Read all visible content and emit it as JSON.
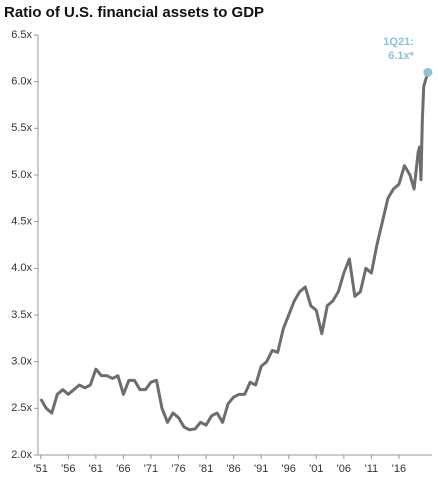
{
  "chart_data": {
    "type": "line",
    "title": "Ratio of U.S. financial assets to GDP",
    "annotation": [
      "1Q21:",
      "6.1x*"
    ],
    "x": [
      1951,
      1952,
      1953,
      1954,
      1955,
      1956,
      1957,
      1958,
      1959,
      1960,
      1961,
      1962,
      1963,
      1964,
      1965,
      1966,
      1967,
      1968,
      1969,
      1970,
      1971,
      1972,
      1973,
      1974,
      1975,
      1976,
      1977,
      1978,
      1979,
      1980,
      1981,
      1982,
      1983,
      1984,
      1985,
      1986,
      1987,
      1988,
      1989,
      1990,
      1991,
      1992,
      1993,
      1994,
      1995,
      1996,
      1997,
      1998,
      1999,
      2000,
      2001,
      2002,
      2003,
      2004,
      2005,
      2006,
      2007,
      2008,
      2009,
      2010,
      2011,
      2012,
      2013,
      2014,
      2015,
      2016,
      2017,
      2018,
      2018.75,
      2019.5,
      2019.75,
      2020,
      2020.25,
      2020.5,
      2020.75,
      2021,
      2021.25
    ],
    "series": [
      {
        "name": "Ratio of U.S. financial assets to GDP",
        "color": "#6d6d6d",
        "values": [
          2.6,
          2.5,
          2.45,
          2.65,
          2.7,
          2.65,
          2.7,
          2.75,
          2.72,
          2.75,
          2.92,
          2.85,
          2.85,
          2.82,
          2.85,
          2.65,
          2.8,
          2.8,
          2.7,
          2.7,
          2.78,
          2.8,
          2.5,
          2.35,
          2.45,
          2.4,
          2.3,
          2.27,
          2.28,
          2.35,
          2.32,
          2.42,
          2.45,
          2.35,
          2.55,
          2.62,
          2.65,
          2.65,
          2.78,
          2.75,
          2.95,
          3.0,
          3.12,
          3.1,
          3.35,
          3.5,
          3.65,
          3.75,
          3.8,
          3.6,
          3.55,
          3.3,
          3.6,
          3.65,
          3.75,
          3.95,
          4.1,
          3.7,
          3.75,
          4.0,
          3.95,
          4.25,
          4.5,
          4.75,
          4.85,
          4.9,
          5.1,
          5.0,
          4.85,
          5.25,
          5.3,
          4.95,
          5.6,
          5.95,
          6.0,
          6.05,
          6.1
        ]
      }
    ],
    "marker_color": "#8fc1d4",
    "xlim": [
      1950.5,
      2022
    ],
    "ylim": [
      2.0,
      6.5
    ],
    "yticks": [
      {
        "value": 2.0,
        "label": "2.0x"
      },
      {
        "value": 2.5,
        "label": "2.5x"
      },
      {
        "value": 3.0,
        "label": "3.0x"
      },
      {
        "value": 3.5,
        "label": "3.5x"
      },
      {
        "value": 4.0,
        "label": "4.0x"
      },
      {
        "value": 4.5,
        "label": "4.5x"
      },
      {
        "value": 5.0,
        "label": "5.0x"
      },
      {
        "value": 5.5,
        "label": "5.5x"
      },
      {
        "value": 6.0,
        "label": "6.0x"
      },
      {
        "value": 6.5,
        "label": "6.5x"
      }
    ],
    "xticks": [
      {
        "value": 1951,
        "label": "'51"
      },
      {
        "value": 1956,
        "label": "'56"
      },
      {
        "value": 1961,
        "label": "'61"
      },
      {
        "value": 1966,
        "label": "'66"
      },
      {
        "value": 1971,
        "label": "'71"
      },
      {
        "value": 1976,
        "label": "'76"
      },
      {
        "value": 1981,
        "label": "'81"
      },
      {
        "value": 1986,
        "label": "'86"
      },
      {
        "value": 1991,
        "label": "'91"
      },
      {
        "value": 1996,
        "label": "'96"
      },
      {
        "value": 2001,
        "label": "'01"
      },
      {
        "value": 2006,
        "label": "'06"
      },
      {
        "value": 2011,
        "label": "'11"
      },
      {
        "value": 2016,
        "label": "'16"
      }
    ]
  }
}
